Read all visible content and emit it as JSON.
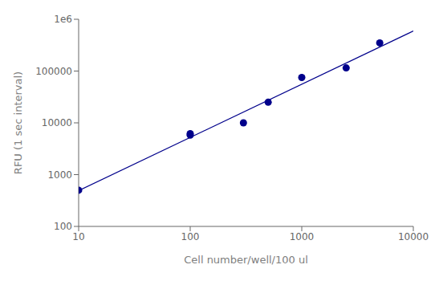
{
  "chart_data": {
    "type": "scatter",
    "x_label": "Cell number/well/100 ul",
    "y_label": "RFU (1 sec interval)",
    "log": true,
    "xlim": [
      10,
      10000
    ],
    "ylim": [
      100,
      1000000
    ],
    "xticks": [
      10,
      100,
      1000,
      10000
    ],
    "yticks": [
      100,
      1000,
      10000,
      100000,
      {
        "value": 1000000,
        "label": "1e6"
      }
    ],
    "grid": false,
    "series": [
      {
        "type": "scatter",
        "marker": "circle",
        "color": "#00008B",
        "x": [
          10,
          100,
          100,
          300,
          500,
          1000,
          2500,
          5000
        ],
        "values": [
          500,
          5800,
          6200,
          10000,
          25000,
          75000,
          115000,
          350000
        ],
        "yerr": [
          0,
          500,
          500,
          0,
          0,
          2000,
          0,
          0
        ]
      },
      {
        "type": "line",
        "line_style": "solid",
        "color": "#00008B",
        "x": [
          10,
          10000
        ],
        "values": [
          489.5,
          593210
        ]
      }
    ]
  }
}
